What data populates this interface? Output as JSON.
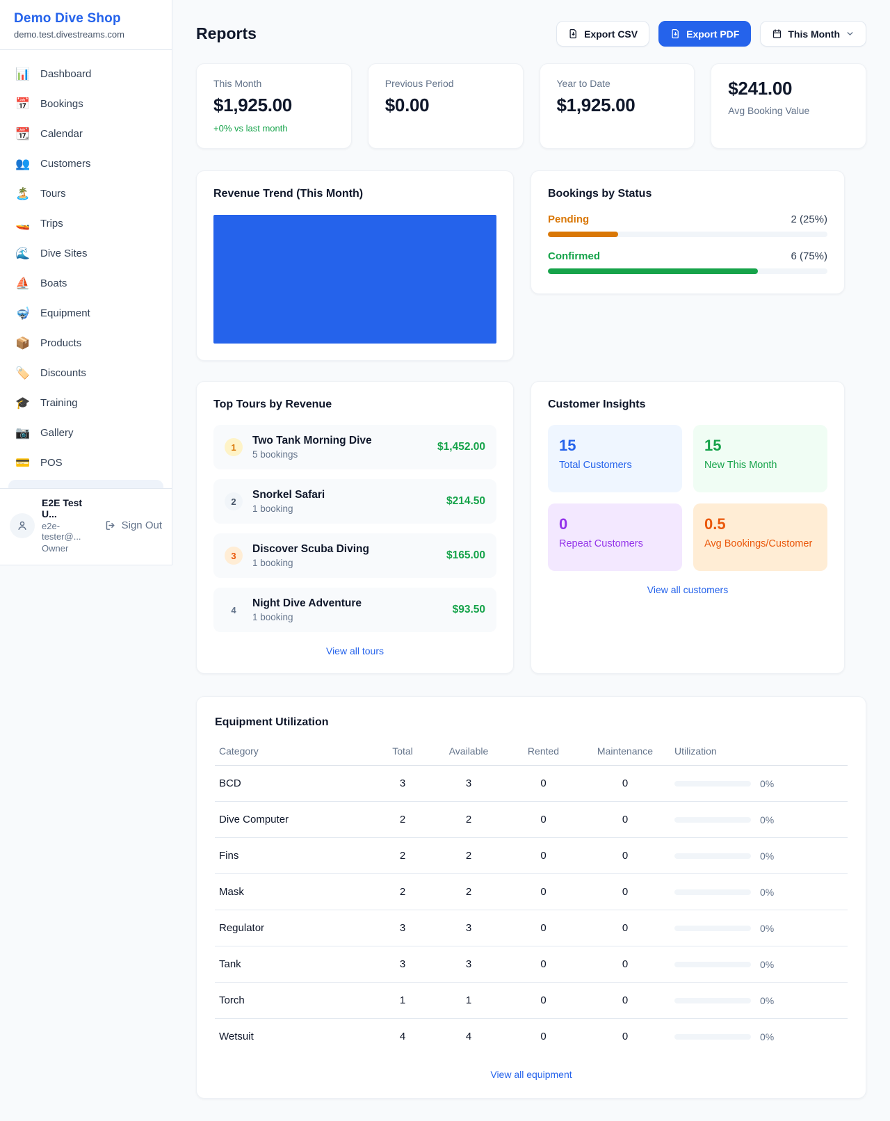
{
  "colors": {
    "accent_blue": "#2563eb",
    "green": "#16a34a",
    "orange_pending": "#d97706",
    "orange_deep": "#ea580c",
    "purple": "#9333ea",
    "chart_bar_blue": "#2563eb"
  },
  "brand": {
    "name": "Demo Dive Shop",
    "domain": "demo.test.divestreams.com"
  },
  "sidebar": {
    "items": [
      {
        "label": "Dashboard",
        "icon": "📊"
      },
      {
        "label": "Bookings",
        "icon": "📅"
      },
      {
        "label": "Calendar",
        "icon": "📆"
      },
      {
        "label": "Customers",
        "icon": "👥"
      },
      {
        "label": "Tours",
        "icon": "🏝️"
      },
      {
        "label": "Trips",
        "icon": "🚤"
      },
      {
        "label": "Dive Sites",
        "icon": "🌊"
      },
      {
        "label": "Boats",
        "icon": "⛵"
      },
      {
        "label": "Equipment",
        "icon": "🤿"
      },
      {
        "label": "Products",
        "icon": "📦"
      },
      {
        "label": "Discounts",
        "icon": "🏷️"
      },
      {
        "label": "Training",
        "icon": "🎓"
      },
      {
        "label": "Gallery",
        "icon": "📷"
      },
      {
        "label": "POS",
        "icon": "💳"
      }
    ],
    "user": {
      "name": "E2E Test U...",
      "email": "e2e-tester@...",
      "role": "Owner",
      "sign_out_label": "Sign Out"
    }
  },
  "header": {
    "title": "Reports",
    "export_csv_label": "Export CSV",
    "export_pdf_label": "Export PDF",
    "period_label": "This Month"
  },
  "stats": [
    {
      "label": "This Month",
      "value": "$1,925.00",
      "delta": "+0% vs last month"
    },
    {
      "label": "Previous Period",
      "value": "$0.00"
    },
    {
      "label": "Year to Date",
      "value": "$1,925.00"
    },
    {
      "label": "Avg Booking Value",
      "value": "$241.00"
    }
  ],
  "revenue_trend": {
    "title": "Revenue Trend (This Month)",
    "bar_color": "#2563eb",
    "bar_width": "100%"
  },
  "chart_data": {
    "type": "bar",
    "title": "Revenue Trend (This Month)",
    "categories": [
      "This Month"
    ],
    "values": [
      1925.0
    ],
    "note": "single full-width solid blue bar, no axes or labels visible"
  },
  "bookings_by_status": {
    "title": "Bookings by Status",
    "rows": [
      {
        "label": "Pending",
        "value": "2 (25%)",
        "pct_width": "25%",
        "color": "#d97706"
      },
      {
        "label": "Confirmed",
        "value": "6 (75%)",
        "pct_width": "75%",
        "color": "#16a34a"
      }
    ]
  },
  "top_tours": {
    "title": "Top Tours by Revenue",
    "items": [
      {
        "rank": "1",
        "name": "Two Tank Morning Dive",
        "bookings": "5 bookings",
        "revenue": "$1,452.00"
      },
      {
        "rank": "2",
        "name": "Snorkel Safari",
        "bookings": "1 booking",
        "revenue": "$214.50"
      },
      {
        "rank": "3",
        "name": "Discover Scuba Diving",
        "bookings": "1 booking",
        "revenue": "$165.00"
      },
      {
        "rank": "4",
        "name": "Night Dive Adventure",
        "bookings": "1 booking",
        "revenue": "$93.50"
      }
    ],
    "view_all": "View all tours"
  },
  "customer_insights": {
    "title": "Customer Insights",
    "tiles": [
      {
        "value": "15",
        "label": "Total Customers"
      },
      {
        "value": "15",
        "label": "New This Month"
      },
      {
        "value": "0",
        "label": "Repeat Customers"
      },
      {
        "value": "0.5",
        "label": "Avg Bookings/Customer"
      }
    ],
    "view_all": "View all customers"
  },
  "equipment": {
    "title": "Equipment Utilization",
    "columns": [
      "Category",
      "Total",
      "Available",
      "Rented",
      "Maintenance",
      "Utilization"
    ],
    "rows": [
      {
        "category": "BCD",
        "total": "3",
        "available": "3",
        "rented": "0",
        "maintenance": "0",
        "utilization": "0%",
        "util_width": "0%"
      },
      {
        "category": "Dive Computer",
        "total": "2",
        "available": "2",
        "rented": "0",
        "maintenance": "0",
        "utilization": "0%",
        "util_width": "0%"
      },
      {
        "category": "Fins",
        "total": "2",
        "available": "2",
        "rented": "0",
        "maintenance": "0",
        "utilization": "0%",
        "util_width": "0%"
      },
      {
        "category": "Mask",
        "total": "2",
        "available": "2",
        "rented": "0",
        "maintenance": "0",
        "utilization": "0%",
        "util_width": "0%"
      },
      {
        "category": "Regulator",
        "total": "3",
        "available": "3",
        "rented": "0",
        "maintenance": "0",
        "utilization": "0%",
        "util_width": "0%"
      },
      {
        "category": "Tank",
        "total": "3",
        "available": "3",
        "rented": "0",
        "maintenance": "0",
        "utilization": "0%",
        "util_width": "0%"
      },
      {
        "category": "Torch",
        "total": "1",
        "available": "1",
        "rented": "0",
        "maintenance": "0",
        "utilization": "0%",
        "util_width": "0%"
      },
      {
        "category": "Wetsuit",
        "total": "4",
        "available": "4",
        "rented": "0",
        "maintenance": "0",
        "utilization": "0%",
        "util_width": "0%"
      }
    ],
    "view_all": "View all equipment"
  }
}
